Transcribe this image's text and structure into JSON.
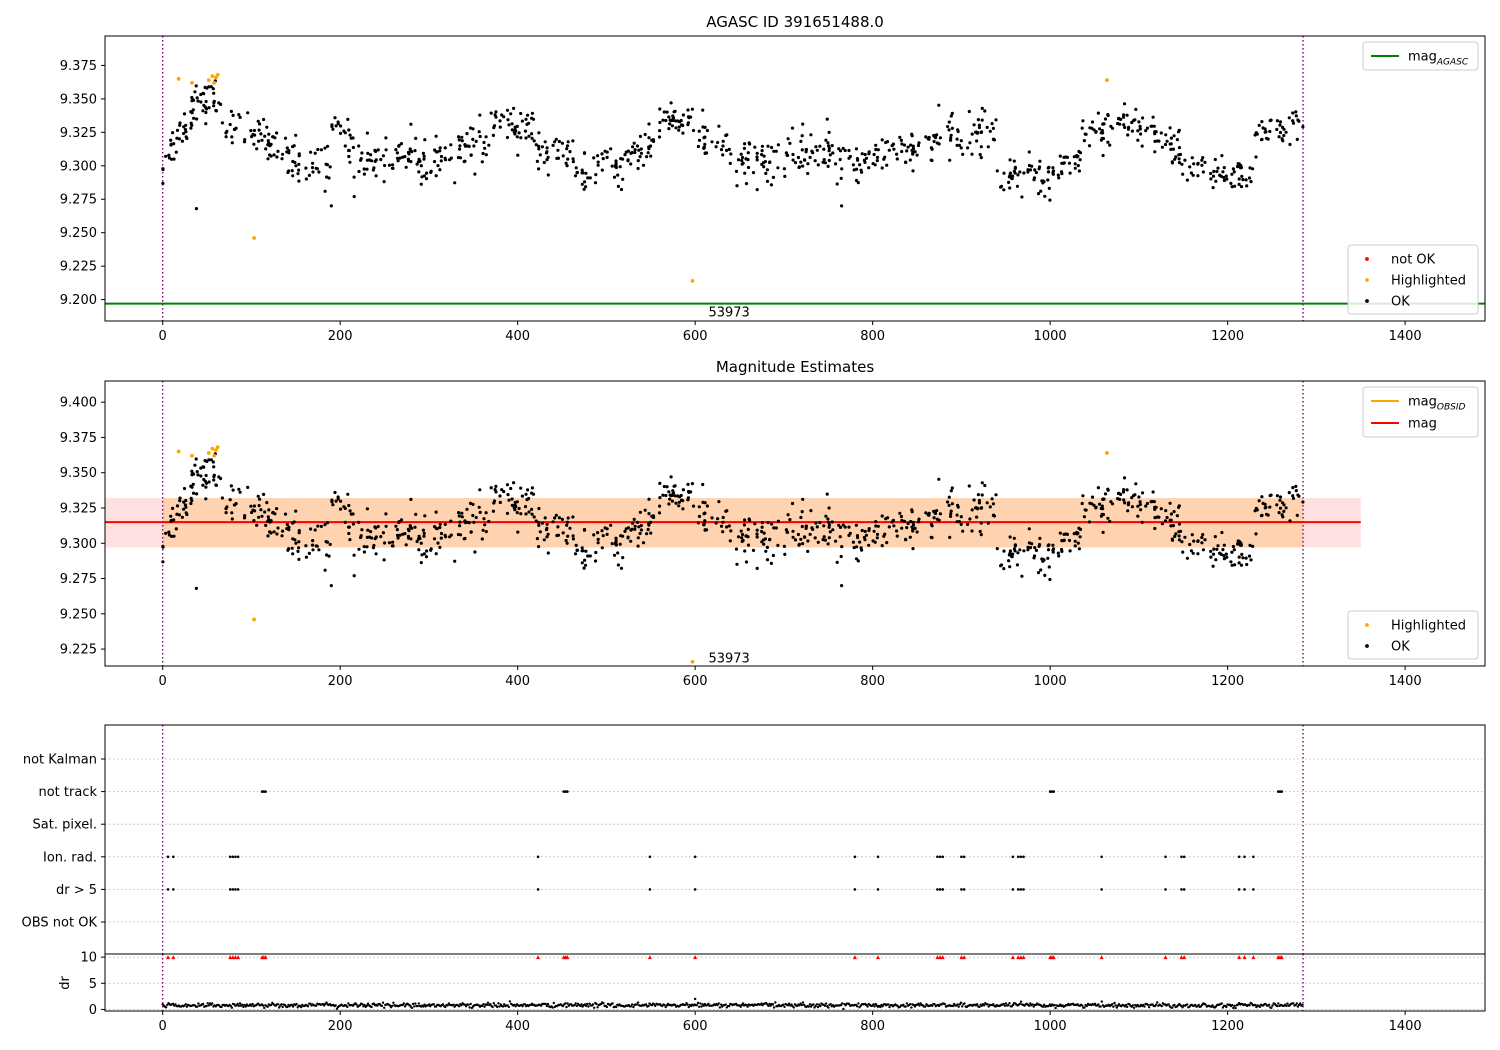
{
  "chart_data": [
    {
      "type": "scatter",
      "title": "AGASC ID 391651488.0",
      "xlim": [
        -65,
        1490
      ],
      "ylim": [
        9.184,
        9.397
      ],
      "xticks": [
        0,
        200,
        400,
        600,
        800,
        1000,
        1200,
        1400
      ],
      "yticks": [
        9.2,
        9.225,
        9.25,
        9.275,
        9.3,
        9.325,
        9.35,
        9.375
      ],
      "ytick_labels": [
        "9.200",
        "9.225",
        "9.250",
        "9.275",
        "9.300",
        "9.325",
        "9.350",
        "9.375"
      ],
      "vlines": [
        0,
        1285
      ],
      "lines": [
        {
          "name": "mag",
          "subscript": "AGASC",
          "y": 9.197,
          "x": [
            -65,
            1490
          ],
          "color": "#008000"
        }
      ],
      "annotation": {
        "text": "53973",
        "x": 615,
        "y": 9.191
      },
      "legend_lines_position": "top-right",
      "legend_points_position": "lower-right",
      "legend_points": [
        {
          "name": "not OK",
          "color": "#ff0000"
        },
        {
          "name": "Highlighted",
          "color": "#ffa500"
        },
        {
          "name": "OK",
          "color": "#000000"
        }
      ],
      "highlighted_points": [
        [
          18,
          9.365
        ],
        [
          33,
          9.362
        ],
        [
          52,
          9.364
        ],
        [
          56,
          9.367
        ],
        [
          58,
          9.362
        ],
        [
          60,
          9.366
        ],
        [
          62,
          9.368
        ],
        [
          103,
          9.246
        ],
        [
          597,
          9.214
        ],
        [
          1064,
          9.364
        ]
      ],
      "ok_outliers": [
        [
          38,
          9.268
        ],
        [
          190,
          9.27
        ],
        [
          765,
          9.27
        ]
      ],
      "ok_segments": [
        {
          "x0": 0,
          "x1": 40,
          "y0": 9.3,
          "y1": 9.352,
          "n": 45,
          "spread": 0.011
        },
        {
          "x0": 40,
          "x1": 65,
          "y0": 9.345,
          "y1": 9.353,
          "n": 25,
          "spread": 0.009
        },
        {
          "x0": 65,
          "x1": 120,
          "y0": 9.33,
          "y1": 9.322,
          "n": 40,
          "spread": 0.01
        },
        {
          "x0": 120,
          "x1": 190,
          "y0": 9.31,
          "y1": 9.298,
          "n": 55,
          "spread": 0.011
        },
        {
          "x0": 190,
          "x1": 215,
          "y0": 9.335,
          "y1": 9.315,
          "n": 22,
          "spread": 0.009
        },
        {
          "x0": 215,
          "x1": 285,
          "y0": 9.303,
          "y1": 9.31,
          "n": 55,
          "spread": 0.01
        },
        {
          "x0": 285,
          "x1": 370,
          "y0": 9.298,
          "y1": 9.318,
          "n": 70,
          "spread": 0.011
        },
        {
          "x0": 370,
          "x1": 420,
          "y0": 9.332,
          "y1": 9.328,
          "n": 45,
          "spread": 0.01
        },
        {
          "x0": 420,
          "x1": 465,
          "y0": 9.31,
          "y1": 9.308,
          "n": 35,
          "spread": 0.009
        },
        {
          "x0": 465,
          "x1": 520,
          "y0": 9.292,
          "y1": 9.3,
          "n": 45,
          "spread": 0.009
        },
        {
          "x0": 520,
          "x1": 560,
          "y0": 9.305,
          "y1": 9.322,
          "n": 35,
          "spread": 0.01
        },
        {
          "x0": 560,
          "x1": 600,
          "y0": 9.335,
          "y1": 9.333,
          "n": 38,
          "spread": 0.008
        },
        {
          "x0": 600,
          "x1": 680,
          "y0": 9.318,
          "y1": 9.302,
          "n": 65,
          "spread": 0.011
        },
        {
          "x0": 680,
          "x1": 760,
          "y0": 9.302,
          "y1": 9.315,
          "n": 65,
          "spread": 0.012
        },
        {
          "x0": 760,
          "x1": 800,
          "y0": 9.3,
          "y1": 9.305,
          "n": 30,
          "spread": 0.01
        },
        {
          "x0": 800,
          "x1": 860,
          "y0": 9.308,
          "y1": 9.314,
          "n": 45,
          "spread": 0.009
        },
        {
          "x0": 860,
          "x1": 940,
          "y0": 9.318,
          "y1": 9.325,
          "n": 65,
          "spread": 0.011
        },
        {
          "x0": 940,
          "x1": 1000,
          "y0": 9.293,
          "y1": 9.29,
          "n": 50,
          "spread": 0.01
        },
        {
          "x0": 1000,
          "x1": 1035,
          "y0": 9.298,
          "y1": 9.305,
          "n": 28,
          "spread": 0.009
        },
        {
          "x0": 1035,
          "x1": 1070,
          "y0": 9.322,
          "y1": 9.332,
          "n": 30,
          "spread": 0.01
        },
        {
          "x0": 1070,
          "x1": 1120,
          "y0": 9.335,
          "y1": 9.325,
          "n": 40,
          "spread": 0.01
        },
        {
          "x0": 1120,
          "x1": 1160,
          "y0": 9.32,
          "y1": 9.305,
          "n": 32,
          "spread": 0.009
        },
        {
          "x0": 1160,
          "x1": 1230,
          "y0": 9.3,
          "y1": 9.29,
          "n": 55,
          "spread": 0.009
        },
        {
          "x0": 1230,
          "x1": 1285,
          "y0": 9.32,
          "y1": 9.328,
          "n": 40,
          "spread": 0.01
        }
      ]
    },
    {
      "type": "scatter",
      "title": "Magnitude Estimates",
      "xlim": [
        -65,
        1490
      ],
      "ylim": [
        9.213,
        9.415
      ],
      "xticks": [
        0,
        200,
        400,
        600,
        800,
        1000,
        1200,
        1400
      ],
      "yticks": [
        9.225,
        9.25,
        9.275,
        9.3,
        9.325,
        9.35,
        9.375,
        9.4
      ],
      "ytick_labels": [
        "9.225",
        "9.250",
        "9.275",
        "9.300",
        "9.325",
        "9.350",
        "9.375",
        "9.400"
      ],
      "vlines": [
        0,
        1285
      ],
      "band_obsid": {
        "y0": 9.297,
        "y1": 9.332,
        "x0": 0,
        "x1": 1285,
        "color": "#ffa500"
      },
      "band_mag": {
        "y0": 9.297,
        "y1": 9.332,
        "x0": -65,
        "x1": 1350,
        "color": "#ff0000"
      },
      "lines": [
        {
          "name": "mag",
          "subscript": "OBSID",
          "y": 9.315,
          "x": [
            0,
            1285
          ],
          "color": "#ffa500"
        },
        {
          "name": "mag",
          "subscript": "",
          "y": 9.315,
          "x": [
            -65,
            1350
          ],
          "color": "#ff0000"
        }
      ],
      "annotation": {
        "text": "53973",
        "x": 615,
        "y": 9.219
      },
      "legend_lines_position": "top-right",
      "legend_points_position": "lower-right",
      "legend_points": [
        {
          "name": "Highlighted",
          "color": "#ffa500"
        },
        {
          "name": "OK",
          "color": "#000000"
        }
      ],
      "highlighted_points": [
        [
          18,
          9.365
        ],
        [
          33,
          9.362
        ],
        [
          52,
          9.364
        ],
        [
          56,
          9.367
        ],
        [
          58,
          9.362
        ],
        [
          60,
          9.366
        ],
        [
          62,
          9.368
        ],
        [
          103,
          9.246
        ],
        [
          597,
          9.216
        ],
        [
          1064,
          9.364
        ]
      ],
      "ok_outliers": [
        [
          38,
          9.268
        ],
        [
          190,
          9.27
        ],
        [
          765,
          9.27
        ]
      ],
      "segments_from": 0
    },
    {
      "type": "scatter",
      "title": "",
      "xlim": [
        -65,
        1490
      ],
      "vlines": [
        0,
        1285
      ],
      "categories": [
        "not Kalman",
        "not track",
        "Sat. pixel.",
        "Ion. rad.",
        "dr > 5",
        "OBS not OK"
      ],
      "flag_x": {
        "not track": [
          112,
          114,
          116,
          452,
          454,
          456,
          1000,
          1002,
          1004,
          1257,
          1259,
          1261
        ],
        "Ion. rad.": [
          6,
          12,
          76,
          79,
          82,
          85,
          423,
          549,
          600,
          780,
          806,
          873,
          876,
          879,
          900,
          903,
          958,
          964,
          967,
          970,
          1058,
          1130,
          1148,
          1151,
          1213,
          1219,
          1229
        ],
        "dr > 5": [
          6,
          12,
          76,
          79,
          82,
          85,
          423,
          549,
          600,
          780,
          806,
          873,
          876,
          879,
          900,
          903,
          958,
          964,
          967,
          970,
          1058,
          1130,
          1148,
          1151,
          1213,
          1219,
          1229
        ]
      }
    },
    {
      "type": "scatter",
      "title": "",
      "ylabel": "dr",
      "xlim": [
        -65,
        1490
      ],
      "ylim": [
        -0.3,
        10.6
      ],
      "xticks": [
        0,
        200,
        400,
        600,
        800,
        1000,
        1200,
        1400
      ],
      "yticks": [
        0,
        5,
        10
      ],
      "vlines": [
        0,
        1285
      ],
      "clipped_red_x": [
        6,
        12,
        76,
        79,
        82,
        85,
        112,
        114,
        116,
        423,
        452,
        454,
        456,
        549,
        600,
        780,
        806,
        873,
        876,
        879,
        900,
        903,
        958,
        964,
        967,
        970,
        1000,
        1002,
        1004,
        1058,
        1130,
        1148,
        1151,
        1213,
        1219,
        1229,
        1257,
        1259,
        1261
      ],
      "clip_value": 10,
      "dr_baseline": 0.8,
      "dr_spread": 0.35,
      "dr_spike": [
        600,
        2.0
      ]
    }
  ]
}
